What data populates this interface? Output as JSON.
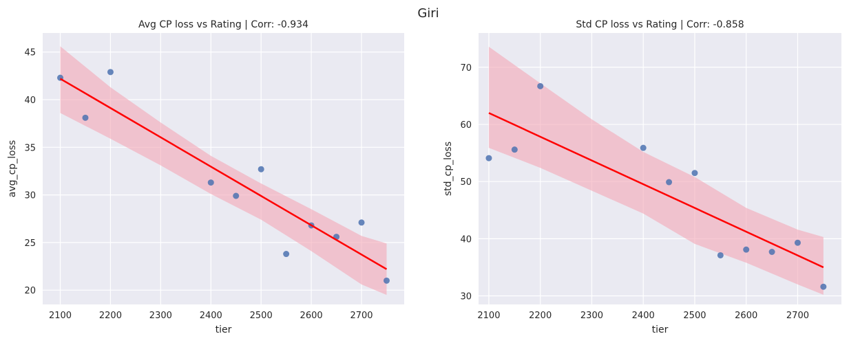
{
  "suptitle": "Giri",
  "colors": {
    "background": "#eaeaf2",
    "grid": "#ffffff",
    "points": "#4c72b0",
    "fit_line": "#ff0000",
    "ci_band": "#f4a6b5"
  },
  "chart_data": [
    {
      "type": "scatter",
      "title": "Avg CP loss vs Rating | Corr: -0.934",
      "xlabel": "tier",
      "ylabel": "avg_cp_loss",
      "xlim": [
        2065,
        2785
      ],
      "ylim": [
        18.5,
        47
      ],
      "xticks": [
        2100,
        2200,
        2300,
        2400,
        2500,
        2600,
        2700
      ],
      "yticks": [
        20,
        25,
        30,
        35,
        40,
        45
      ],
      "grid": true,
      "x": [
        2100,
        2150,
        2200,
        2400,
        2450,
        2500,
        2550,
        2600,
        2650,
        2700,
        2750
      ],
      "y": [
        42.3,
        38.1,
        42.9,
        31.3,
        29.9,
        32.7,
        23.8,
        26.8,
        25.6,
        27.1,
        21.0
      ],
      "fit": {
        "x": [
          2100,
          2750
        ],
        "y": [
          42.2,
          22.2
        ]
      },
      "ci": {
        "x": [
          2100,
          2200,
          2300,
          2400,
          2500,
          2600,
          2700,
          2750
        ],
        "upper": [
          45.6,
          41.3,
          37.6,
          34.1,
          31.2,
          28.5,
          25.7,
          24.9
        ],
        "lower": [
          38.6,
          35.9,
          33.1,
          30.1,
          27.4,
          24.1,
          20.6,
          19.5
        ]
      }
    },
    {
      "type": "scatter",
      "title": "Std CP loss vs Rating | Corr: -0.858",
      "xlabel": "tier",
      "ylabel": "std_cp_loss",
      "xlim": [
        2080,
        2785
      ],
      "ylim": [
        28.5,
        76
      ],
      "xticks": [
        2100,
        2200,
        2300,
        2400,
        2500,
        2600,
        2700
      ],
      "yticks": [
        30,
        40,
        50,
        60,
        70
      ],
      "grid": true,
      "x": [
        2100,
        2150,
        2200,
        2400,
        2450,
        2500,
        2550,
        2600,
        2650,
        2700,
        2750
      ],
      "y": [
        54.1,
        55.6,
        66.7,
        55.9,
        49.9,
        51.5,
        37.1,
        38.1,
        37.7,
        39.3,
        31.6
      ],
      "fit": {
        "x": [
          2100,
          2750
        ],
        "y": [
          62.0,
          35.0
        ]
      },
      "ci": {
        "x": [
          2100,
          2200,
          2300,
          2400,
          2500,
          2600,
          2700,
          2750
        ],
        "upper": [
          73.6,
          67.2,
          60.9,
          55.2,
          50.8,
          45.4,
          41.6,
          40.3
        ],
        "lower": [
          55.9,
          52.4,
          48.4,
          44.4,
          39.1,
          35.8,
          32.0,
          30.2
        ]
      }
    }
  ]
}
